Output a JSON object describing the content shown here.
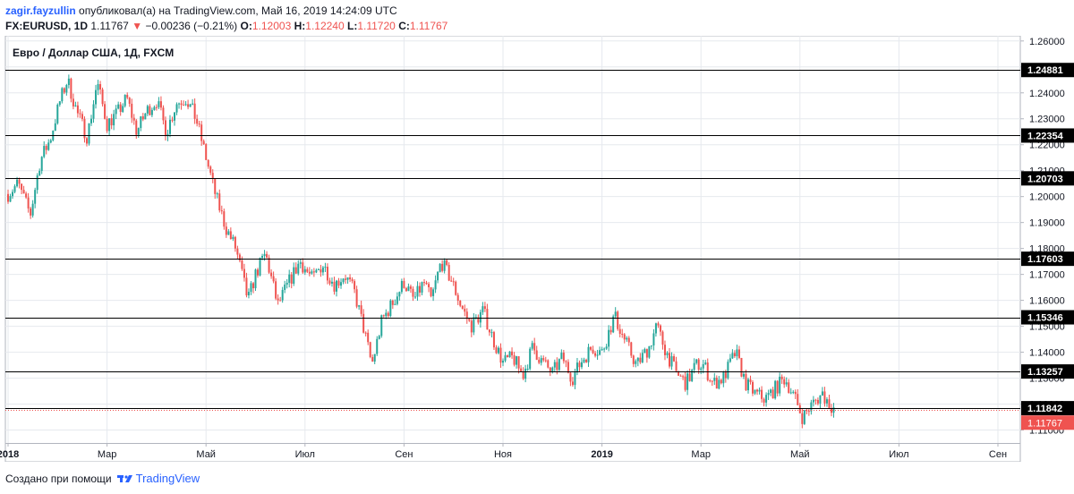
{
  "header": {
    "author": "zagir.fayzullin",
    "published_text": "опубликовал(а) на TradingView.com, Май 16, 2019 14:24:09 UTC",
    "symbol": "FX:EURUSD, 1D",
    "last": "1.11767",
    "change": "−0.00236 (−0.21%)",
    "o_label": "O:",
    "o_value": "1.12003",
    "h_label": "H:",
    "h_value": "1.12240",
    "l_label": "L:",
    "l_value": "1.11720",
    "c_label": "C:",
    "c_value": "1.11767",
    "arrow_icon": "down-triangle-icon"
  },
  "footer": {
    "text": "Создано при помощи",
    "brand": "TradingView",
    "logo_icon": "tradingview-logo-icon"
  },
  "colors": {
    "up": "#26a69a",
    "down": "#ef5350",
    "level_line": "#000000",
    "price_tag": "#ef5350",
    "grid": "#e6e9ee"
  },
  "chart_data": {
    "type": "candlestick",
    "title": "Евро / Доллар США, 1Д, FXCM",
    "ylim": [
      1.105,
      1.262
    ],
    "y_ticks": [
      1.26,
      1.25,
      1.24,
      1.23,
      1.22,
      1.21,
      1.2,
      1.19,
      1.18,
      1.17,
      1.16,
      1.15,
      1.14,
      1.13,
      1.12,
      1.11
    ],
    "y_tick_labels": [
      "1.26000",
      "1.25000",
      "1.24000",
      "1.23000",
      "1.22000",
      "1.21000",
      "1.20000",
      "1.19000",
      "1.18000",
      "1.17000",
      "1.16000",
      "1.15000",
      "1.14000",
      "1.13000",
      "1.12000",
      "1.11000"
    ],
    "x_labels": [
      "2018",
      "Мар",
      "Май",
      "Июл",
      "Сен",
      "Ноя",
      "2019",
      "Мар",
      "Май",
      "Июл",
      "Сен"
    ],
    "x_label_months": [
      0,
      2,
      4,
      6,
      8,
      10,
      12,
      14,
      16,
      18,
      20
    ],
    "horizontal_levels": [
      {
        "value": 1.24881,
        "label": "1.24881"
      },
      {
        "value": 1.22354,
        "label": "1.22354"
      },
      {
        "value": 1.20703,
        "label": "1.20703"
      },
      {
        "value": 1.17603,
        "label": "1.17603"
      },
      {
        "value": 1.15346,
        "label": "1.15346"
      },
      {
        "value": 1.13257,
        "label": "1.13257"
      },
      {
        "value": 1.11842,
        "label": "1.11842"
      }
    ],
    "last_price": {
      "value": 1.11767,
      "label": "1.11767"
    },
    "close_path": [
      [
        0.0,
        1.201
      ],
      [
        0.2,
        1.205
      ],
      [
        0.45,
        1.193
      ],
      [
        0.65,
        1.214
      ],
      [
        0.85,
        1.222
      ],
      [
        1.05,
        1.237
      ],
      [
        1.2,
        1.245
      ],
      [
        1.4,
        1.232
      ],
      [
        1.6,
        1.223
      ],
      [
        1.8,
        1.244
      ],
      [
        2.0,
        1.228
      ],
      [
        2.2,
        1.232
      ],
      [
        2.4,
        1.238
      ],
      [
        2.6,
        1.225
      ],
      [
        2.8,
        1.233
      ],
      [
        3.0,
        1.237
      ],
      [
        3.2,
        1.225
      ],
      [
        3.4,
        1.236
      ],
      [
        3.6,
        1.238
      ],
      [
        3.8,
        1.23
      ],
      [
        4.0,
        1.215
      ],
      [
        4.2,
        1.2
      ],
      [
        4.4,
        1.188
      ],
      [
        4.6,
        1.18
      ],
      [
        4.85,
        1.16
      ],
      [
        5.0,
        1.17
      ],
      [
        5.2,
        1.178
      ],
      [
        5.45,
        1.158
      ],
      [
        5.7,
        1.168
      ],
      [
        5.9,
        1.175
      ],
      [
        6.15,
        1.168
      ],
      [
        6.35,
        1.174
      ],
      [
        6.6,
        1.166
      ],
      [
        6.8,
        1.17
      ],
      [
        7.0,
        1.163
      ],
      [
        7.2,
        1.148
      ],
      [
        7.35,
        1.135
      ],
      [
        7.55,
        1.152
      ],
      [
        7.8,
        1.16
      ],
      [
        8.0,
        1.167
      ],
      [
        8.2,
        1.16
      ],
      [
        8.4,
        1.167
      ],
      [
        8.55,
        1.16
      ],
      [
        8.75,
        1.175
      ],
      [
        8.95,
        1.168
      ],
      [
        9.15,
        1.158
      ],
      [
        9.35,
        1.15
      ],
      [
        9.6,
        1.156
      ],
      [
        9.8,
        1.145
      ],
      [
        10.0,
        1.136
      ],
      [
        10.2,
        1.138
      ],
      [
        10.4,
        1.131
      ],
      [
        10.6,
        1.142
      ],
      [
        10.8,
        1.136
      ],
      [
        11.0,
        1.132
      ],
      [
        11.2,
        1.138
      ],
      [
        11.4,
        1.13
      ],
      [
        11.6,
        1.137
      ],
      [
        11.8,
        1.142
      ],
      [
        12.0,
        1.14
      ],
      [
        12.25,
        1.154
      ],
      [
        12.45,
        1.145
      ],
      [
        12.7,
        1.135
      ],
      [
        12.95,
        1.142
      ],
      [
        13.1,
        1.15
      ],
      [
        13.3,
        1.14
      ],
      [
        13.5,
        1.132
      ],
      [
        13.7,
        1.128
      ],
      [
        13.9,
        1.135
      ],
      [
        14.05,
        1.135
      ],
      [
        14.25,
        1.128
      ],
      [
        14.45,
        1.13
      ],
      [
        14.7,
        1.14
      ],
      [
        14.9,
        1.128
      ],
      [
        15.1,
        1.124
      ],
      [
        15.3,
        1.122
      ],
      [
        15.5,
        1.126
      ],
      [
        15.7,
        1.13
      ],
      [
        15.9,
        1.122
      ],
      [
        16.05,
        1.115
      ],
      [
        16.25,
        1.12
      ],
      [
        16.45,
        1.124
      ],
      [
        16.6,
        1.12
      ],
      [
        16.72,
        1.1177
      ]
    ]
  }
}
